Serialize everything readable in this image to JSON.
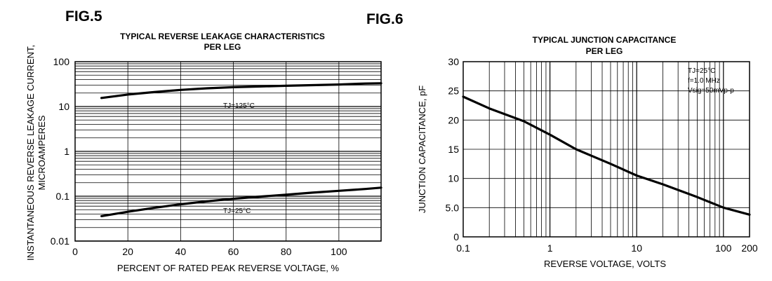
{
  "chart_data": [
    {
      "fig_label": "FIG.5",
      "type": "line",
      "title_line1": "TYPICAL REVERSE LEAKAGE CHARACTERISTICS",
      "title_line2": "PER LEG",
      "xlabel": "PERCENT OF RATED PEAK REVERSE VOLTAGE, %",
      "ylabel_line1": "INSTANTANEOUS REVERSE  LEAKAGE CURRENT,",
      "ylabel_line2": "MICROAMPERES",
      "xlim": [
        0,
        116
      ],
      "ylim": [
        0.01,
        100
      ],
      "yscale": "log",
      "x_ticks": [
        "0",
        "20",
        "40",
        "60",
        "80",
        "100"
      ],
      "y_ticks": [
        "0.01",
        "0.1",
        "1",
        "10",
        "100"
      ],
      "grid": true,
      "series": [
        {
          "name": "TJ=125°C",
          "x": [
            10,
            20,
            30,
            40,
            50,
            60,
            70,
            80,
            90,
            100,
            110,
            116
          ],
          "y": [
            15.5,
            18.5,
            21.0,
            23.5,
            25.5,
            27.0,
            28.0,
            29.0,
            30.0,
            31.0,
            32.5,
            33.0
          ]
        },
        {
          "name": "TJ=25°C",
          "x": [
            10,
            20,
            30,
            40,
            50,
            60,
            70,
            80,
            90,
            100,
            110,
            116
          ],
          "y": [
            0.036,
            0.045,
            0.055,
            0.066,
            0.077,
            0.088,
            0.098,
            0.108,
            0.12,
            0.132,
            0.145,
            0.155
          ]
        }
      ]
    },
    {
      "fig_label": "FIG.6",
      "type": "line",
      "title_line1": "TYPICAL JUNCTION CAPACITANCE",
      "title_line2": "PER LEG",
      "xlabel": "REVERSE VOLTAGE, VOLTS",
      "ylabel": "JUNCTION CAPACITANCE, pF",
      "xscale": "log",
      "xlim": [
        0.1,
        200
      ],
      "ylim": [
        0,
        30
      ],
      "x_ticks": [
        "0.1",
        "1",
        "10",
        "100",
        "200"
      ],
      "y_ticks": [
        "0",
        "5.0",
        "10",
        "15",
        "20",
        "25",
        "30"
      ],
      "grid": true,
      "conditions": [
        "TJ=25°C",
        "f=1.0 MHz",
        "Vsig=50mVp-p"
      ],
      "series": [
        {
          "name": "",
          "x": [
            0.1,
            0.2,
            0.5,
            1,
            2,
            5,
            10,
            20,
            50,
            100,
            200
          ],
          "y": [
            24.0,
            22.0,
            19.8,
            17.5,
            15.0,
            12.5,
            10.5,
            9.0,
            6.8,
            5.0,
            3.8
          ]
        }
      ]
    }
  ]
}
